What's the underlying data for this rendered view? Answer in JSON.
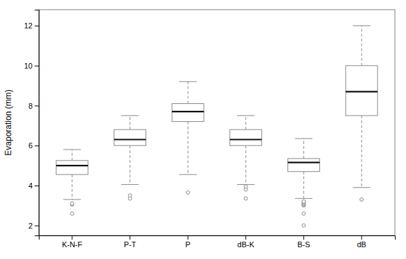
{
  "chart_data": {
    "type": "box",
    "categories": [
      "K-N-F",
      "P-T",
      "P",
      "dB-K",
      "B-S",
      "dB"
    ],
    "boxes": [
      {
        "q1": 4.55,
        "median": 5.0,
        "q3": 5.25,
        "whisker_low": 3.3,
        "whisker_high": 5.8,
        "outliers": [
          2.6,
          3.05,
          3.1
        ]
      },
      {
        "q1": 6.0,
        "median": 6.3,
        "q3": 6.8,
        "whisker_low": 4.05,
        "whisker_high": 7.5,
        "outliers": [
          3.35,
          3.5
        ]
      },
      {
        "q1": 7.2,
        "median": 7.7,
        "q3": 8.1,
        "whisker_low": 4.55,
        "whisker_high": 9.2,
        "outliers": [
          3.65
        ]
      },
      {
        "q1": 6.0,
        "median": 6.3,
        "q3": 6.8,
        "whisker_low": 4.05,
        "whisker_high": 7.5,
        "outliers": [
          3.35,
          3.8,
          3.95
        ]
      },
      {
        "q1": 4.7,
        "median": 5.15,
        "q3": 5.35,
        "whisker_low": 3.35,
        "whisker_high": 6.35,
        "outliers": [
          2.0,
          2.6,
          3.0,
          3.05,
          3.1,
          3.15,
          3.2
        ]
      },
      {
        "q1": 7.5,
        "median": 8.7,
        "q3": 10.0,
        "whisker_low": 3.9,
        "whisker_high": 12.0,
        "outliers": [
          3.3
        ]
      }
    ],
    "ylabel": "Evaporation (mm)",
    "ylim": [
      1.5,
      12.8
    ],
    "yticks": [
      2,
      4,
      6,
      8,
      10,
      12
    ],
    "color": "#888888",
    "grid": false
  }
}
